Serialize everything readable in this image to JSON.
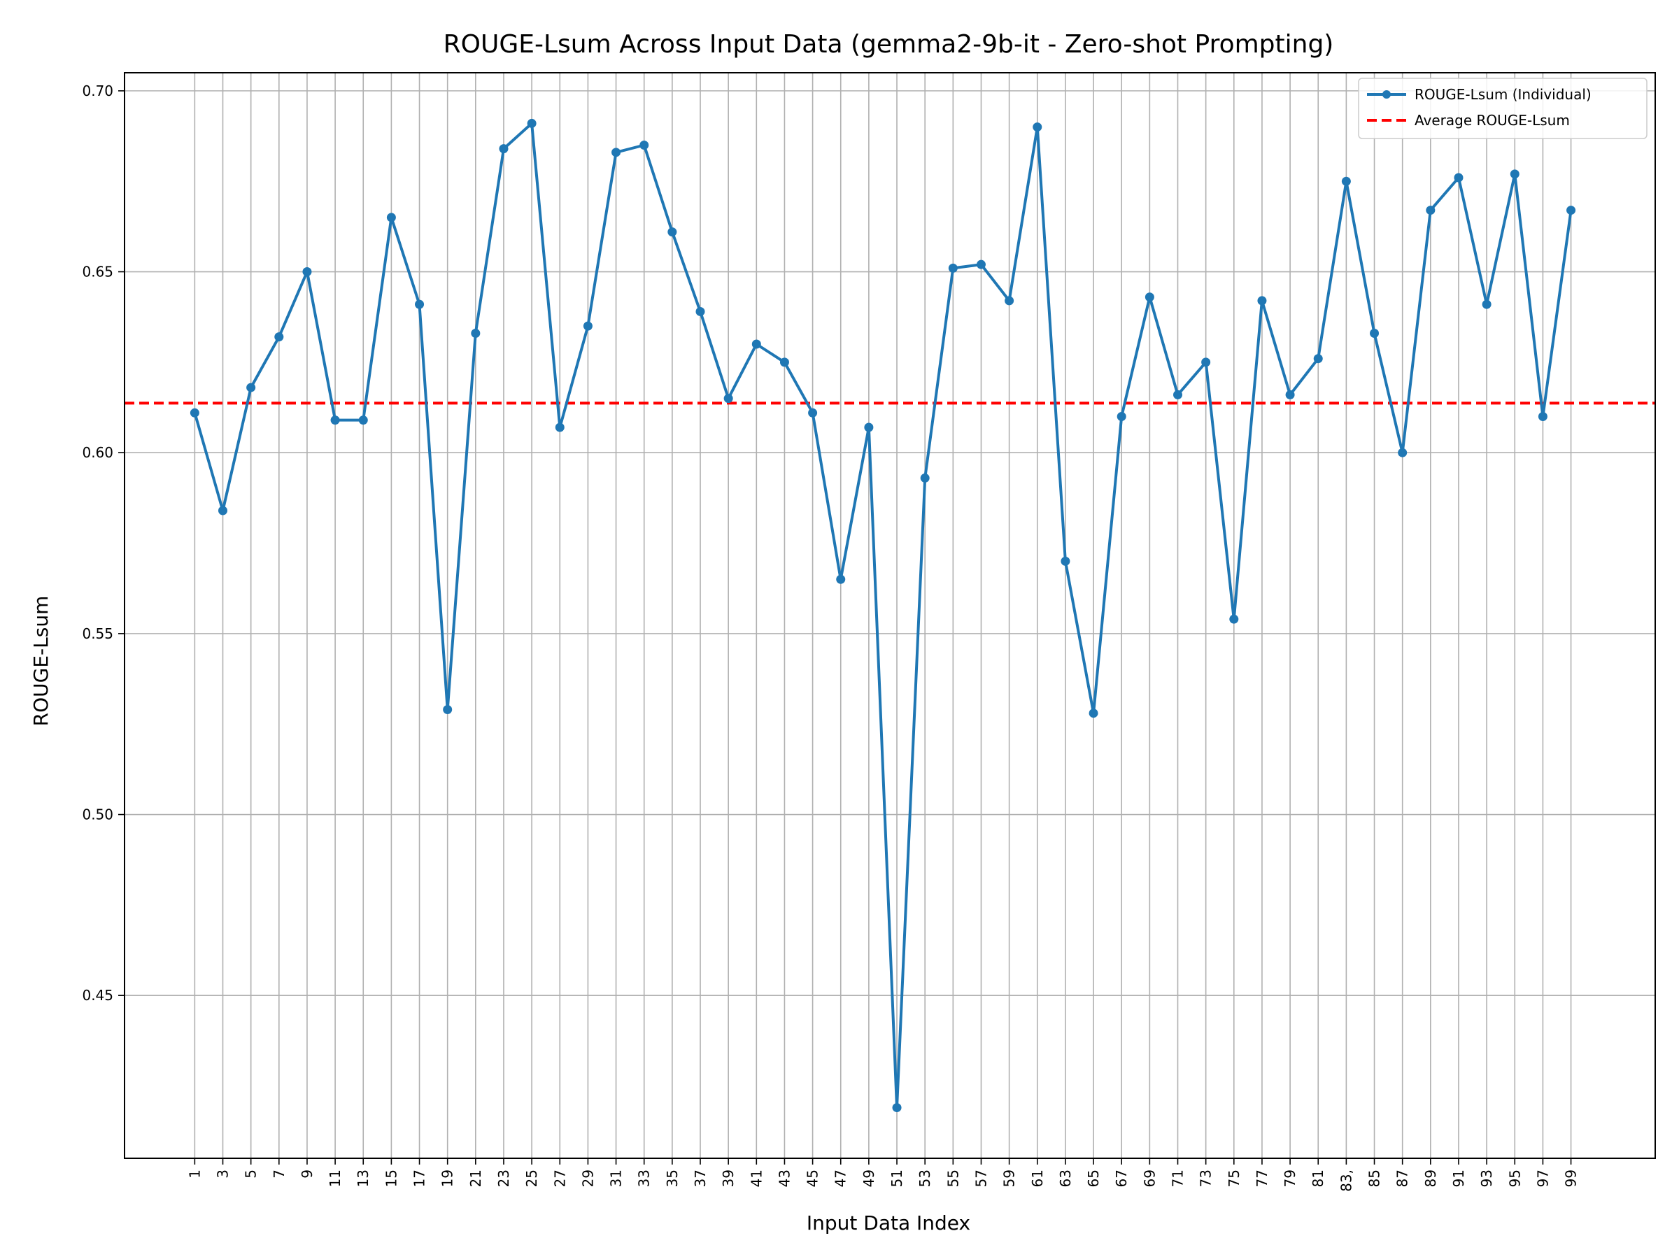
{
  "chart_data": {
    "type": "line",
    "title": "ROUGE-Lsum Across Input Data (gemma2-9b-it - Zero-shot Prompting)",
    "xlabel": "Input Data Index",
    "ylabel": "ROUGE-Lsum",
    "x": [
      1,
      3,
      5,
      7,
      9,
      11,
      13,
      15,
      17,
      19,
      21,
      23,
      25,
      27,
      29,
      31,
      33,
      35,
      37,
      39,
      41,
      43,
      45,
      47,
      49,
      51,
      53,
      55,
      57,
      59,
      61,
      63,
      65,
      67,
      69,
      71,
      73,
      75,
      77,
      79,
      81,
      83,
      85,
      87,
      89,
      91,
      93,
      95,
      97,
      99
    ],
    "x_ticks": [
      "1",
      "3",
      "5",
      "7",
      "9",
      "11",
      "13",
      "15",
      "17",
      "19",
      "21",
      "23",
      "25",
      "27",
      "29",
      "31",
      "33",
      "35",
      "37",
      "39",
      "41",
      "43",
      "45",
      "47",
      "49",
      "51",
      "53",
      "55",
      "57",
      "59",
      "61",
      "63",
      "65",
      "67",
      "69",
      "71",
      "73",
      "75",
      "77",
      "79",
      "81",
      "83,",
      "85",
      "87",
      "89",
      "91",
      "93",
      "95",
      "97",
      "99"
    ],
    "y_ticks": [
      "0.45",
      "0.50",
      "0.55",
      "0.60",
      "0.65",
      "0.70"
    ],
    "ylim": [
      0.405,
      0.705
    ],
    "xlim": [
      -4,
      105
    ],
    "grid": true,
    "legend_position": "upper right",
    "series": [
      {
        "name": "ROUGE-Lsum (Individual)",
        "color": "#1f77b4",
        "marker": "circle",
        "values": [
          0.611,
          0.584,
          0.618,
          0.632,
          0.65,
          0.609,
          0.609,
          0.665,
          0.641,
          0.529,
          0.633,
          0.684,
          0.691,
          0.607,
          0.635,
          0.683,
          0.685,
          0.661,
          0.639,
          0.615,
          0.63,
          0.625,
          0.611,
          0.565,
          0.607,
          0.419,
          0.593,
          0.651,
          0.652,
          0.642,
          0.69,
          0.57,
          0.528,
          0.61,
          0.643,
          0.616,
          0.625,
          0.554,
          0.642,
          0.616,
          0.626,
          0.675,
          0.633,
          0.6,
          0.667,
          0.676,
          0.641,
          0.677,
          0.61,
          0.667
        ]
      }
    ],
    "reference_lines": [
      {
        "name": "Average ROUGE-Lsum",
        "value": 0.6137,
        "color": "#ff0000",
        "style": "dashed"
      }
    ]
  }
}
